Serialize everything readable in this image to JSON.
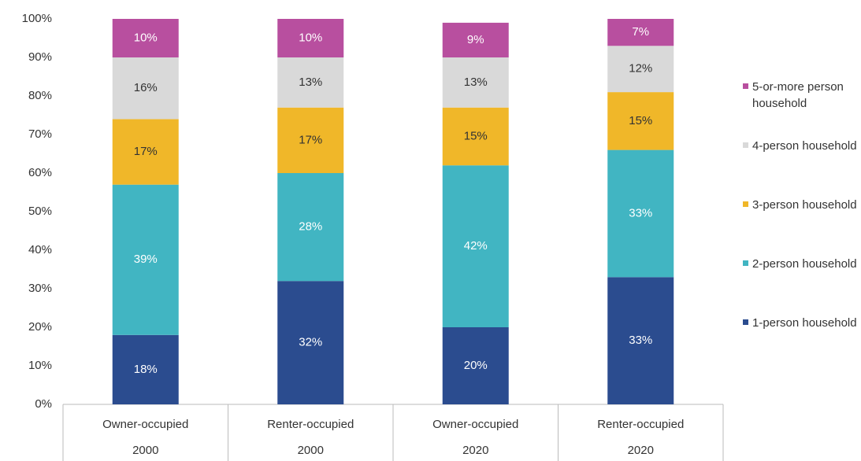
{
  "chart_data": {
    "type": "stacked_bar",
    "categories": [
      [
        "Owner-occupied",
        "2000"
      ],
      [
        "Renter-occupied",
        "2000"
      ],
      [
        "Owner-occupied",
        "2020"
      ],
      [
        "Renter-occupied",
        "2020"
      ]
    ],
    "series": [
      {
        "name": "1-person household",
        "color": "#2b4c8f",
        "values": [
          18,
          32,
          20,
          33
        ],
        "value_labels": [
          "18%",
          "32%",
          "20%",
          "33%"
        ]
      },
      {
        "name": "2-person household",
        "color": "#41b5c2",
        "values": [
          39,
          28,
          42,
          33
        ],
        "value_labels": [
          "39%",
          "28%",
          "42%",
          "33%"
        ]
      },
      {
        "name": "3-person household",
        "color": "#f0b729",
        "values": [
          17,
          17,
          15,
          15
        ],
        "value_labels": [
          "17%",
          "17%",
          "15%",
          "15%"
        ]
      },
      {
        "name": "4-person household",
        "color": "#d9d9d9",
        "values": [
          16,
          13,
          13,
          12
        ],
        "value_labels": [
          "16%",
          "13%",
          "13%",
          "12%"
        ]
      },
      {
        "name": "5-or-more person household",
        "color": "#b84f9f",
        "values": [
          10,
          10,
          9,
          7
        ],
        "value_labels": [
          "10%",
          "10%",
          "9%",
          "7%"
        ]
      }
    ],
    "ylim": [
      0,
      100
    ],
    "yticks": [
      {
        "value": 0,
        "label": "0%"
      },
      {
        "value": 10,
        "label": "10%"
      },
      {
        "value": 20,
        "label": "20%"
      },
      {
        "value": 30,
        "label": "30%"
      },
      {
        "value": 40,
        "label": "40%"
      },
      {
        "value": 50,
        "label": "50%"
      },
      {
        "value": 60,
        "label": "60%"
      },
      {
        "value": 70,
        "label": "70%"
      },
      {
        "value": 80,
        "label": "80%"
      },
      {
        "value": 90,
        "label": "90%"
      },
      {
        "value": 100,
        "label": "100%"
      }
    ],
    "grid": false,
    "legend": "right"
  }
}
